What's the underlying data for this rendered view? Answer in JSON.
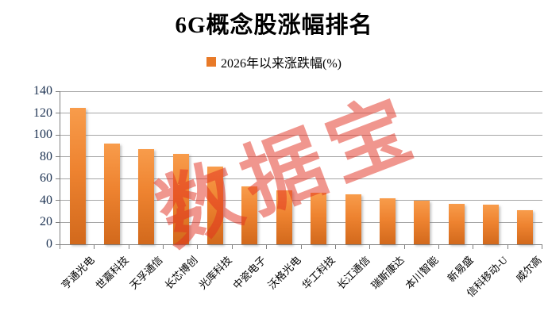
{
  "title": "6G概念股涨幅排名",
  "legend": {
    "label": "2026年以来涨跌幅(%)",
    "swatch_color": "#e87a28"
  },
  "watermark": {
    "text": "数据宝",
    "color": "#e12d1e",
    "opacity": 0.5
  },
  "chart_data": {
    "type": "bar",
    "title": "6G概念股涨幅排名",
    "legend_entries": [
      "2026年以来涨跌幅(%)"
    ],
    "categories": [
      "亨通光电",
      "世嘉科技",
      "天孚通信",
      "长芯博创",
      "光库科技",
      "中瓷电子",
      "沃格光电",
      "华工科技",
      "长江通信",
      "瑞斯康达",
      "本川智能",
      "新易盛",
      "信科移动-U",
      "威尔高"
    ],
    "values": [
      125,
      92,
      87,
      83,
      71,
      53,
      49,
      47,
      46,
      42,
      40,
      37,
      36,
      31
    ],
    "xlabel": "",
    "ylabel": "",
    "ylim": [
      0,
      140
    ],
    "ytick_step": 20,
    "yticks": [
      0,
      20,
      40,
      60,
      80,
      100,
      120,
      140
    ],
    "grid": true,
    "legend_position": "top-center",
    "bar_color_top": "#f89c4b",
    "bar_color_bottom": "#d2691c",
    "axis_tick_label_color": "#1a3050",
    "gridline_color": "#a6a6a6"
  }
}
